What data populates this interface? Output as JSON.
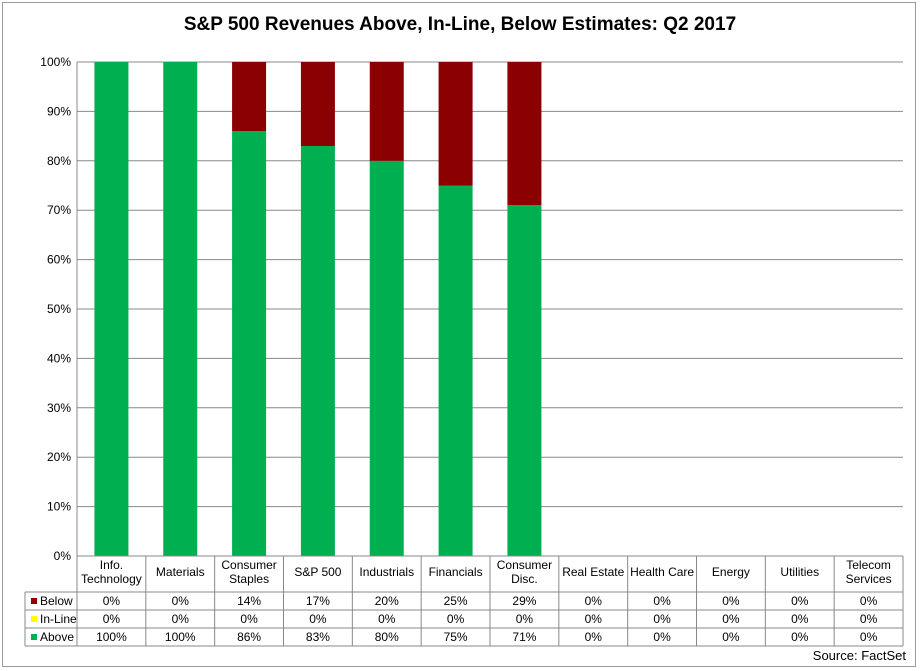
{
  "chart_data": {
    "type": "bar",
    "stacked": true,
    "title": "S&P 500 Revenues Above, In-Line, Below Estimates: Q2 2017",
    "categories": [
      [
        "Info.",
        "Technology"
      ],
      [
        "Materials"
      ],
      [
        "Consumer",
        "Staples"
      ],
      [
        "S&P 500"
      ],
      [
        "Industrials"
      ],
      [
        "Financials"
      ],
      [
        "Consumer",
        "Disc."
      ],
      [
        "Real Estate"
      ],
      [
        "Health Care"
      ],
      [
        "Energy"
      ],
      [
        "Utilities"
      ],
      [
        "Telecom",
        "Services"
      ]
    ],
    "series": [
      {
        "name": "Below",
        "color": "#8b0000",
        "values": [
          0,
          0,
          14,
          17,
          20,
          25,
          29,
          0,
          0,
          0,
          0,
          0
        ]
      },
      {
        "name": "In-Line",
        "color": "#ffff00",
        "values": [
          0,
          0,
          0,
          0,
          0,
          0,
          0,
          0,
          0,
          0,
          0,
          0
        ]
      },
      {
        "name": "Above",
        "color": "#00b050",
        "values": [
          100,
          100,
          86,
          83,
          80,
          75,
          71,
          0,
          0,
          0,
          0,
          0
        ]
      }
    ],
    "ylim": [
      0,
      100
    ],
    "yticks": [
      "0%",
      "10%",
      "20%",
      "30%",
      "40%",
      "50%",
      "60%",
      "70%",
      "80%",
      "90%",
      "100%"
    ],
    "legend": "data-table",
    "grid": true
  },
  "source": "Source: FactSet"
}
